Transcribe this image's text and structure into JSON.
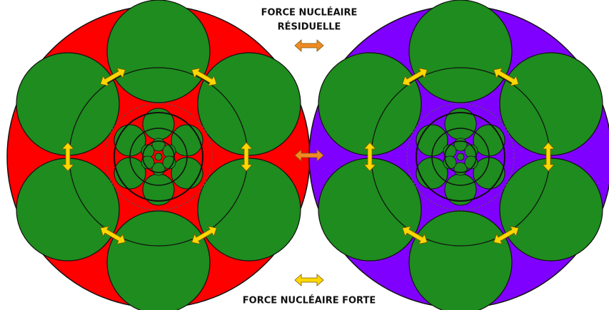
{
  "labels": {
    "residual_line1": "FORCE NUCLÉAIRE",
    "residual_line2": "RÉSIDUELLE",
    "strong": "FORCE NUCLÉAIRE FORTE"
  }
}
